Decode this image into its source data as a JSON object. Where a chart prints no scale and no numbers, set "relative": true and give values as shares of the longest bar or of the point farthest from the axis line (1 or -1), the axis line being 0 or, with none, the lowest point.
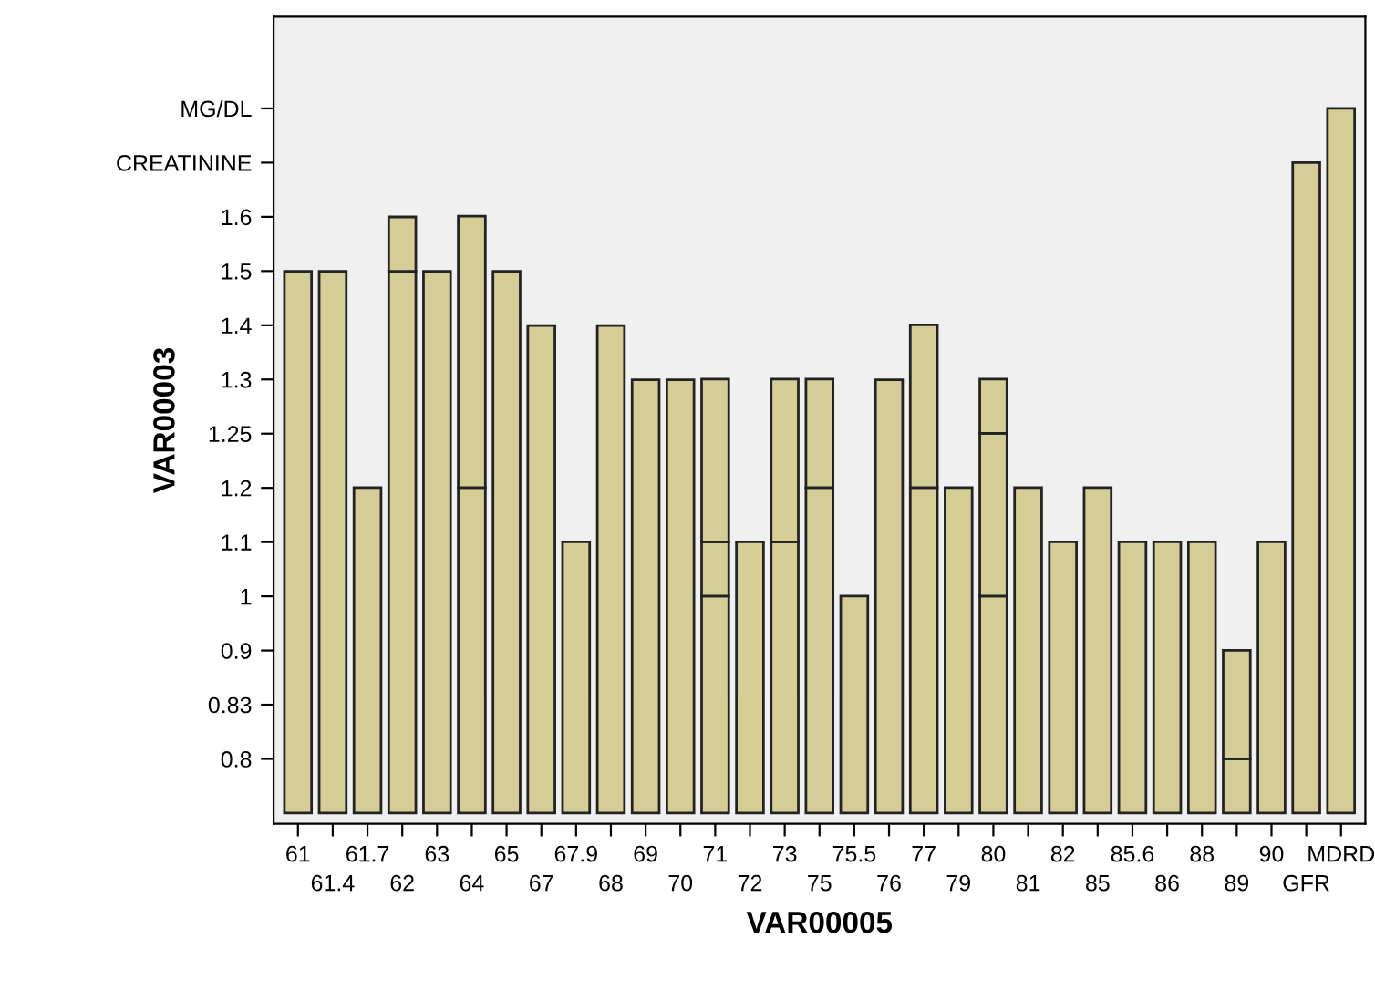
{
  "chart_data": {
    "type": "bar",
    "stacked": true,
    "relative": true,
    "xlabel": "VAR00005",
    "ylabel": "VAR00003",
    "categories": [
      "61",
      "61.4",
      "61.7",
      "62",
      "63",
      "64",
      "65",
      "67",
      "67.9",
      "68",
      "69",
      "70",
      "71",
      "72",
      "73",
      "75",
      "75.5",
      "76",
      "77",
      "79",
      "80",
      "81",
      "82",
      "85",
      "85.6",
      "86",
      "88",
      "89",
      "90",
      "GFR",
      "MDRD"
    ],
    "y_categories": [
      "MG/DL",
      "CREATININE",
      "1.6",
      "1.5",
      "1.4",
      "1.3",
      "1.25",
      "1.2",
      "1.1",
      "1",
      "0.9",
      "0.83",
      "0.8"
    ],
    "series": [
      {
        "color": "#d4cd96",
        "values": [
          0.769,
          0.769,
          0.462,
          0.769,
          0.769,
          0.462,
          0.769,
          0.692,
          0.385,
          0.692,
          0.615,
          0.615,
          0.308,
          0.385,
          0.385,
          0.462,
          0.308,
          0.615,
          0.462,
          0.462,
          0.308,
          0.462,
          0.385,
          0.462,
          0.385,
          0.385,
          0.385,
          0.077,
          0.385,
          0.923,
          1
        ]
      },
      {
        "color": "#d4cd96",
        "values": [
          null,
          null,
          null,
          0.077,
          null,
          0.385,
          null,
          null,
          null,
          null,
          null,
          null,
          0.077,
          null,
          0.231,
          0.154,
          null,
          null,
          0.231,
          null,
          0.231,
          null,
          null,
          null,
          null,
          null,
          null,
          0.154,
          null,
          null,
          null
        ]
      },
      {
        "color": "#d4cd96",
        "values": [
          null,
          null,
          null,
          null,
          null,
          null,
          null,
          null,
          null,
          null,
          null,
          null,
          0.231,
          null,
          null,
          null,
          null,
          null,
          null,
          null,
          0.077,
          null,
          null,
          null,
          null,
          null,
          null,
          null,
          null,
          null,
          null
        ]
      }
    ],
    "grid": false
  }
}
